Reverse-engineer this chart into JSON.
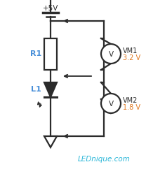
{
  "bg_color": "#ffffff",
  "line_color": "#2b2b2b",
  "label_r1_color": "#4a90d9",
  "label_l1_color": "#4a90d9",
  "label_vm_color": "#2b2b2b",
  "label_v_color": "#e07820",
  "label_vcc": "+5V",
  "label_r1": "R1",
  "label_l1": "L1",
  "label_vm1": "VM1",
  "label_vm1_val": "3.2 V",
  "label_vm2": "VM2",
  "label_vm2_val": "1.8 V",
  "label_site": "LEDnique.com",
  "site_color": "#29b6d8",
  "figsize": [
    2.08,
    2.42
  ],
  "dpi": 100
}
